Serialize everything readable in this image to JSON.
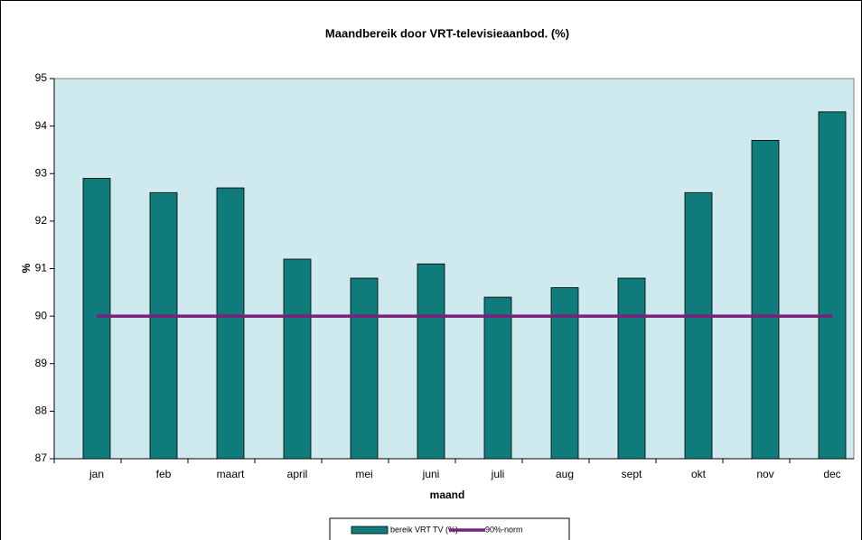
{
  "chart_data": {
    "type": "bar",
    "title": "Maandbereik door VRT-televisieaanbod. (%)",
    "x_label": "maand",
    "y_label": "%",
    "categories": [
      "jan",
      "feb",
      "maart",
      "april",
      "mei",
      "juni",
      "juli",
      "aug",
      "sept",
      "okt",
      "nov",
      "dec"
    ],
    "series": [
      {
        "name": "bereik VRT TV (%)",
        "color": "#0f7b7b",
        "values": [
          92.9,
          92.6,
          92.7,
          91.2,
          90.8,
          91.1,
          90.4,
          90.6,
          90.8,
          92.6,
          93.7,
          94.3
        ]
      },
      {
        "name": "90%-norm",
        "color": "#7b1f7b",
        "type": "line",
        "values": [
          90,
          90,
          90,
          90,
          90,
          90,
          90,
          90,
          90,
          90,
          90,
          90
        ]
      }
    ],
    "ylim": [
      87,
      95
    ],
    "yticks": [
      87,
      88,
      89,
      90,
      91,
      92,
      93,
      94,
      95
    ],
    "plot_background": "#cfeaee",
    "legend": "bottom"
  }
}
